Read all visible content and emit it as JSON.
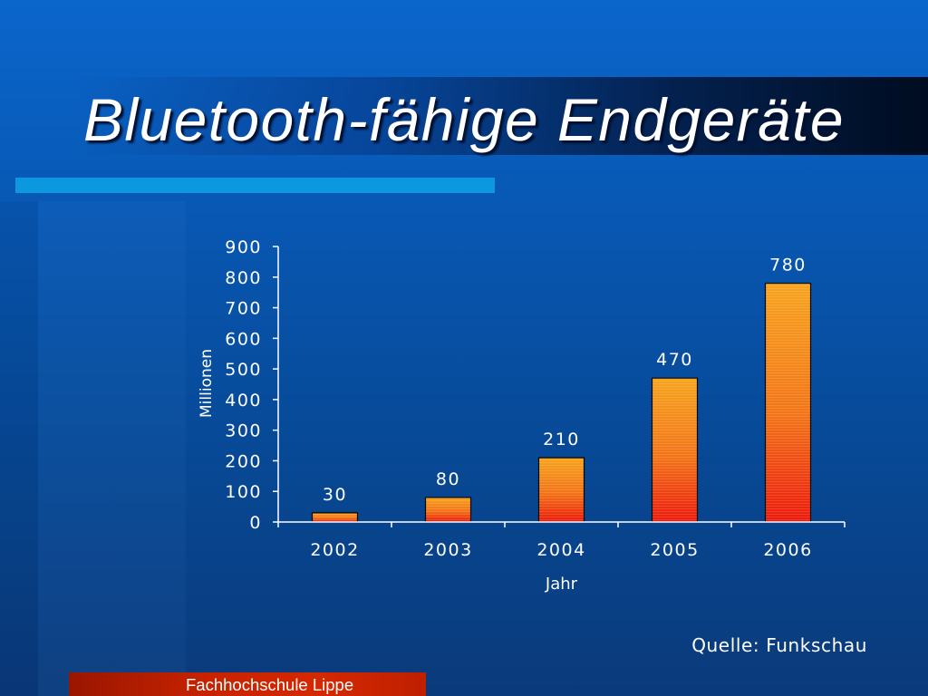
{
  "slide": {
    "title": "Bluetooth-fähige Endgeräte",
    "source": "Quelle: Funkschau",
    "footer": "Fachhochschule Lippe"
  },
  "colors": {
    "title_text": "#ffffff",
    "accent_bar": "#0c98de",
    "bar_top": "#f7a41e",
    "bar_mid": "#f27418",
    "bar_bottom": "#ec1a0c",
    "bar_outline": "#000000",
    "axis": "#ffffff",
    "footer_bar": "#c82300"
  },
  "chart_data": {
    "type": "bar",
    "categories": [
      "2002",
      "2003",
      "2004",
      "2005",
      "2006"
    ],
    "values": [
      30,
      80,
      210,
      470,
      780
    ],
    "xlabel": "Jahr",
    "ylabel": "Millionen",
    "ylim": [
      0,
      900
    ],
    "yticks": [
      0,
      100,
      200,
      300,
      400,
      500,
      600,
      700,
      800,
      900
    ],
    "grid": false,
    "data_labels": true
  }
}
